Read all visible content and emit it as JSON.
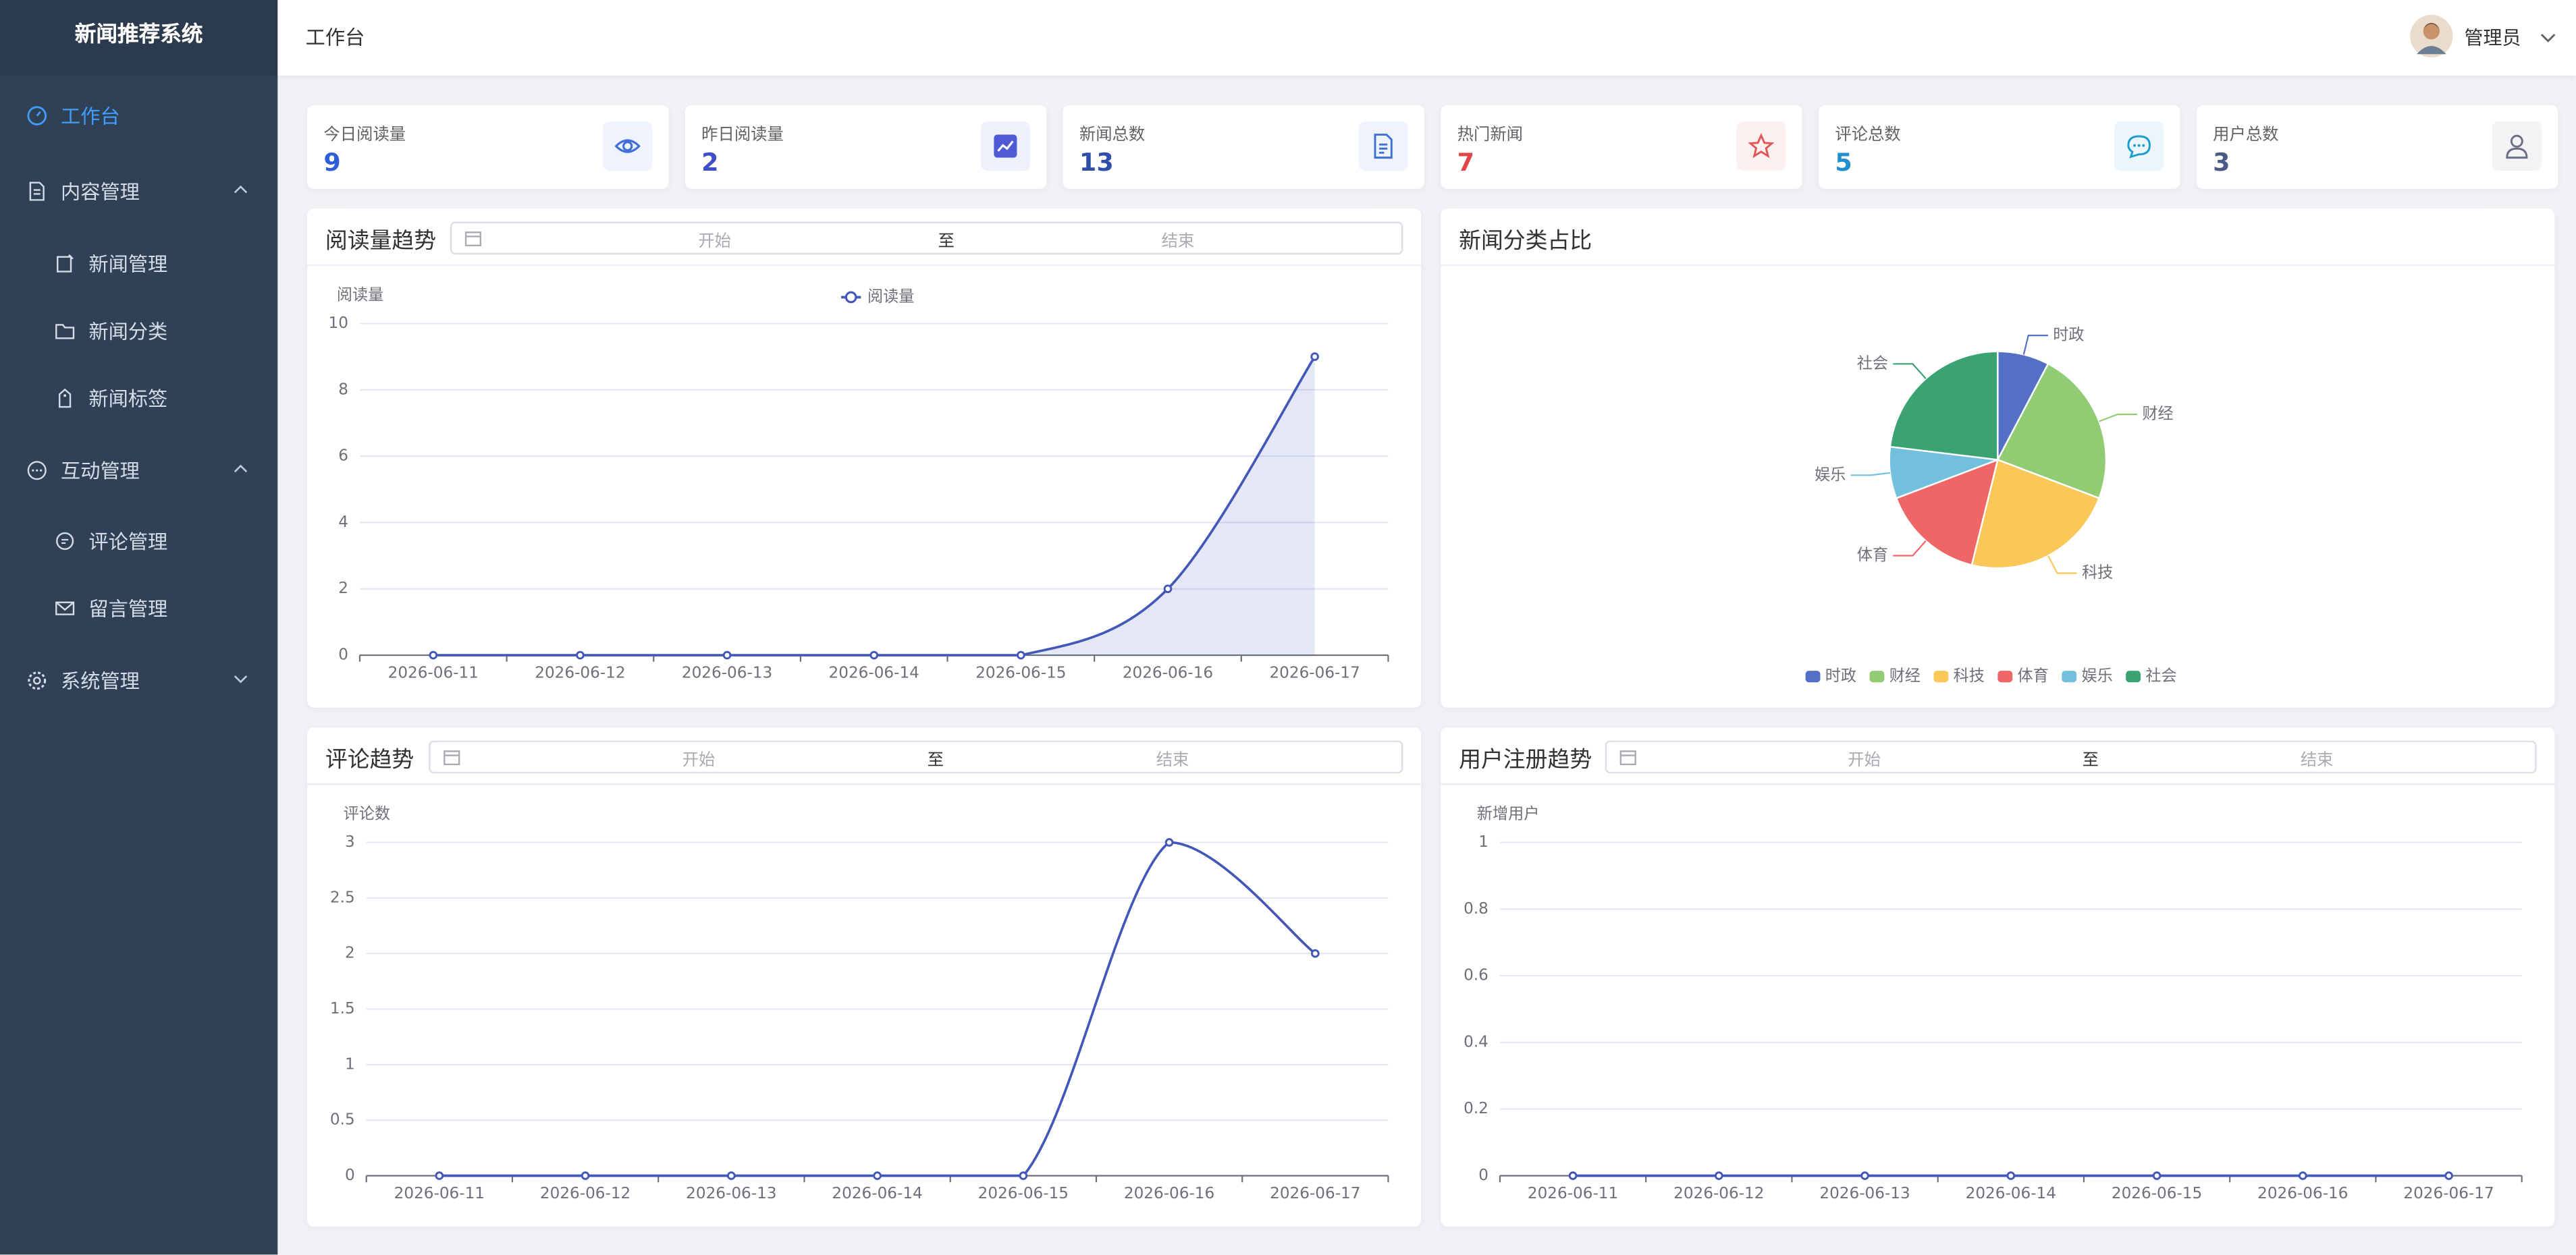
{
  "sidebar": {
    "title": "新闻推荐系统",
    "menu": [
      {
        "label": "工作台"
      },
      {
        "label": "内容管理",
        "children": [
          "新闻管理",
          "新闻分类",
          "新闻标签"
        ]
      },
      {
        "label": "互动管理",
        "children": [
          "评论管理",
          "留言管理"
        ]
      },
      {
        "label": "系统管理"
      }
    ]
  },
  "header": {
    "title": "工作台",
    "user": "管理员"
  },
  "stats": [
    {
      "label": "今日阅读量",
      "value": 9
    },
    {
      "label": "昨日阅读量",
      "value": 2
    },
    {
      "label": "新闻总数",
      "value": 13
    },
    {
      "label": "热门新闻",
      "value": 7
    },
    {
      "label": "评论总数",
      "value": 5
    },
    {
      "label": "用户总数",
      "value": 3
    }
  ],
  "chart_data": [
    {
      "type": "line",
      "title": "阅读量趋势",
      "date_range": {
        "start": "开始",
        "separator": "至",
        "end": "结束"
      },
      "y_label": "阅读量",
      "legend": true,
      "area": true,
      "smooth": true,
      "categories": [
        "2026-06-11",
        "2026-06-12",
        "2026-06-13",
        "2026-06-14",
        "2026-06-15",
        "2026-06-16",
        "2026-06-17"
      ],
      "series": [
        {
          "name": "阅读量",
          "color": "#4257b8",
          "values": [
            0,
            0,
            0,
            0,
            0,
            2,
            9
          ]
        }
      ],
      "ylim": [
        0,
        10
      ],
      "yticks": [
        0,
        2,
        4,
        6,
        8,
        10
      ],
      "grid": true
    },
    {
      "type": "pie",
      "title": "新闻分类占比",
      "legend": true,
      "categories": [
        "时政",
        "财经",
        "科技",
        "体育",
        "娱乐",
        "社会"
      ],
      "values": [
        1,
        3,
        3,
        2,
        1,
        3
      ],
      "colors": [
        "#5470c6",
        "#91cc75",
        "#fac858",
        "#ee6666",
        "#73c0de",
        "#3ba272"
      ]
    },
    {
      "type": "line",
      "title": "评论趋势",
      "date_range": {
        "start": "开始",
        "separator": "至",
        "end": "结束"
      },
      "y_label": "评论数",
      "legend": false,
      "area": false,
      "smooth": true,
      "categories": [
        "2026-06-11",
        "2026-06-12",
        "2026-06-13",
        "2026-06-14",
        "2026-06-15",
        "2026-06-16",
        "2026-06-17"
      ],
      "series": [
        {
          "name": "评论数",
          "color": "#4257b8",
          "values": [
            0,
            0,
            0,
            0,
            0,
            3,
            2
          ]
        }
      ],
      "ylim": [
        0,
        3
      ],
      "yticks": [
        0,
        0.5,
        1,
        1.5,
        2,
        2.5,
        3
      ],
      "grid": true
    },
    {
      "type": "line",
      "title": "用户注册趋势",
      "date_range": {
        "start": "开始",
        "separator": "至",
        "end": "结束"
      },
      "y_label": "新增用户",
      "legend": false,
      "area": false,
      "smooth": true,
      "categories": [
        "2026-06-11",
        "2026-06-12",
        "2026-06-13",
        "2026-06-14",
        "2026-06-15",
        "2026-06-16",
        "2026-06-17"
      ],
      "series": [
        {
          "name": "新增用户",
          "color": "#4257b8",
          "values": [
            0,
            0,
            0,
            0,
            0,
            0,
            0
          ]
        }
      ],
      "ylim": [
        0,
        1
      ],
      "yticks": [
        0,
        0.2,
        0.4,
        0.6,
        0.8,
        1
      ],
      "grid": true
    }
  ]
}
